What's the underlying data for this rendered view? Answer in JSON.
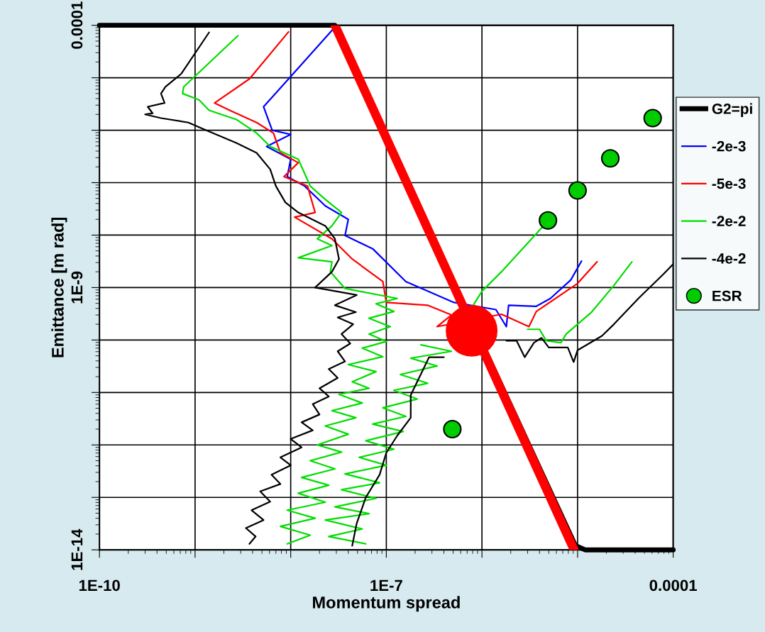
{
  "chart_data": {
    "type": "line",
    "xlabel": "Momentum spread",
    "ylabel": "Emittance [m rad]",
    "log": "xy",
    "grid": true,
    "legend": "right",
    "xlim": [
      1e-10,
      0.0001
    ],
    "ylim": [
      1e-14,
      0.0001
    ],
    "xticks": [
      {
        "value": 1e-10,
        "label": "1E-10"
      },
      {
        "value": 1e-09,
        "label": null
      },
      {
        "value": 1e-08,
        "label": null
      },
      {
        "value": 1e-07,
        "label": "1E-7"
      },
      {
        "value": 1e-06,
        "label": null
      },
      {
        "value": 1e-05,
        "label": null
      },
      {
        "value": 0.0001,
        "label": "0.0001"
      }
    ],
    "yticks": [
      {
        "value": 1e-14,
        "label": "1E-14"
      },
      {
        "value": 1e-13,
        "label": null
      },
      {
        "value": 1e-12,
        "label": null
      },
      {
        "value": 1e-11,
        "label": null
      },
      {
        "value": 1e-10,
        "label": null
      },
      {
        "value": 1e-09,
        "label": "1E-9"
      },
      {
        "value": 1e-08,
        "label": null
      },
      {
        "value": 1e-07,
        "label": null
      },
      {
        "value": 1e-06,
        "label": null
      },
      {
        "value": 1e-05,
        "label": null
      },
      {
        "value": 0.0001,
        "label": "0.0001"
      }
    ],
    "series": [
      {
        "name": "G2=pi",
        "color": "#000000",
        "x": [
          1e-10,
          2.9e-08,
          9.5e-06,
          1.2e-05,
          0.0001
        ],
        "values": [
          0.0001,
          0.0001,
          1.2e-14,
          1e-14,
          1e-14
        ]
      },
      {
        "name": "-2e-3",
        "color": "#0000ff",
        "x": [
          2.8e-08,
          9.5e-09,
          5.2e-09,
          6.4e-09,
          1e-08,
          5.6e-09,
          1e-08,
          9.2e-09,
          1.4e-08,
          2.3e-08,
          4e-08,
          3.7e-08,
          7.2e-08,
          1.6e-07,
          5.1e-07,
          1.4e-06,
          1.8e-06,
          1.9e-06,
          3.7e-06,
          5.2e-06,
          8.5e-06,
          1.1e-05
        ],
        "values": [
          8.6e-05,
          9.5e-06,
          2.8e-06,
          1e-06,
          8.3e-07,
          4.9e-07,
          2.8e-07,
          1.3e-07,
          8.6e-08,
          3.6e-08,
          2e-08,
          9.8e-09,
          5.5e-09,
          1.3e-09,
          5.2e-10,
          3.8e-10,
          1.8e-10,
          4.6e-10,
          4.4e-10,
          6.2e-10,
          1.4e-09,
          3.2e-09
        ]
      },
      {
        "name": "-5e-3",
        "color": "#ff0000",
        "x": [
          9.5e-09,
          3.7e-09,
          1.6e-09,
          2.3e-09,
          4.4e-09,
          6.6e-09,
          7.8e-09,
          1.2e-08,
          8.5e-09,
          1.5e-08,
          1.8e-08,
          1.1e-08,
          2.7e-08,
          4.4e-08,
          9.2e-08,
          1e-07,
          2.7e-07,
          4.8e-07,
          3.4e-07,
          1.6e-06,
          3.1e-06,
          3.7e-06,
          1e-05,
          1.6e-05
        ],
        "values": [
          7.5e-05,
          9.5e-06,
          3.3e-06,
          2.4e-06,
          1.4e-06,
          8.8e-07,
          3.7e-07,
          2.4e-07,
          1.3e-07,
          8.6e-08,
          2.7e-08,
          2.2e-08,
          8.5e-09,
          3.5e-09,
          1.3e-09,
          5.2e-10,
          4.6e-10,
          3e-10,
          1.8e-10,
          3.1e-10,
          1.8e-10,
          3.5e-10,
          1.2e-09,
          3.1e-09
        ]
      },
      {
        "name": "-2e-2",
        "color": "#00dd00",
        "x": [
          2.8e-09,
          7.6e-10,
          7.4e-10,
          1.1e-09,
          1.4e-09,
          2.7e-09,
          4.4e-09,
          6.1e-09,
          1.2e-08,
          1.6e-08,
          2.3e-08,
          3.4e-08,
          2.7e-08,
          1.9e-08,
          2.7e-08,
          1.2e-08,
          2.7e-08,
          2.6e-08,
          3.7e-08,
          1.3e-07,
          7.8e-08,
          1.2e-07,
          6.6e-08,
          1.1e-07,
          6.6e-08,
          1e-07,
          5.6e-08,
          9.2e-08,
          4e-08,
          7.8e-08,
          4.4e-08,
          6.6e-08,
          3.2e-08,
          5.6e-08,
          2.7e-08,
          4.8e-08,
          2.3e-08,
          4e-08,
          1.9e-08,
          3.4e-08,
          1.6e-08,
          2.9e-08,
          1.3e-08,
          2.5e-08,
          1.2e-08,
          2.3e-08,
          9.2e-09,
          1.8e-08,
          7.8e-09,
          1.6e-08,
          9.2e-09,
          null,
          6.1e-08,
          2.5e-08,
          5.6e-08,
          2.3e-08,
          6.6e-08,
          2.9e-08,
          7.8e-08,
          3.4e-08,
          8.5e-08,
          3.7e-08,
          1e-07,
          5.2e-08,
          1.2e-07,
          6.1e-08,
          1.5e-07,
          7.2e-08,
          1.6e-07,
          9.2e-08,
          2.1e-07,
          1.2e-07,
          2.7e-07,
          1.4e-07,
          3.4e-07,
          1.8e-07,
          4.8e-07,
          2.3e-07,
          null,
          8.1e-07,
          1e-06,
          1.6e-06,
          4.4e-06,
          null,
          null,
          null,
          3e-06,
          4e-06,
          4.7e-06,
          6.7e-06,
          7.6e-06,
          1.4e-05,
          2.4e-05,
          3.7e-05
        ],
        "values": [
          6.3e-05,
          6.7e-06,
          5e-06,
          3.8e-06,
          2.4e-06,
          1.6e-06,
          8.8e-07,
          4.9e-07,
          2.8e-07,
          8.6e-08,
          4.8e-08,
          2.7e-08,
          1.5e-08,
          8.5e-09,
          6.3e-09,
          3.7e-09,
          3.1e-09,
          2e-09,
          9.6e-10,
          6.2e-10,
          4.9e-10,
          3.5e-10,
          2.6e-10,
          1.8e-10,
          1.3e-10,
          9.4e-11,
          7e-11,
          4.8e-11,
          3.4e-11,
          2.5e-11,
          1.6e-11,
          1.2e-11,
          9.2e-12,
          6.3e-12,
          4.5e-12,
          3.3e-12,
          2.3e-12,
          1.6e-12,
          1e-12,
          7.3e-13,
          5e-13,
          3.5e-13,
          2.4e-13,
          1.7e-13,
          1.2e-13,
          8.1e-14,
          5.7e-14,
          4e-14,
          2.8e-14,
          1.9e-14,
          1.3e-14,
          null,
          1.3e-14,
          1.8e-14,
          2.5e-14,
          3.7e-14,
          4.9e-14,
          6.6e-14,
          9.6e-14,
          1.4e-13,
          1.9e-13,
          2.8e-13,
          4.1e-13,
          5.8e-13,
          8.3e-13,
          1.2e-12,
          1.8e-12,
          2.5e-12,
          3.5e-12,
          5.1e-12,
          7.5e-12,
          1.1e-11,
          1.5e-11,
          2.2e-11,
          3.2e-11,
          4.5e-11,
          6.1e-11,
          8.1e-11,
          null,
          4.6e-10,
          8.5e-10,
          2e-09,
          1.5e-08,
          null,
          null,
          null,
          1.6e-10,
          1.6e-10,
          9.7e-11,
          8.9e-11,
          1.3e-10,
          3.4e-10,
          1.1e-09,
          3.1e-09
        ]
      },
      {
        "name": "-4e-2",
        "color": "#000000",
        "x": [
          1.4e-09,
          7.2e-10,
          4.9e-10,
          4.4e-10,
          4.8e-10,
          3.2e-10,
          3.6e-10,
          3e-10,
          4.4e-10,
          8.5e-10,
          1.3e-09,
          2.7e-09,
          4.4e-09,
          6.1e-09,
          7e-09,
          8.8e-09,
          1.2e-08,
          2.3e-08,
          2.9e-08,
          3.2e-08,
          2.7e-08,
          1.8e-08,
          4.9e-08,
          2.9e-08,
          4.8e-08,
          3.1e-08,
          4.5e-08,
          3.4e-08,
          4.2e-08,
          3.1e-08,
          3.7e-08,
          2.5e-08,
          3.1e-08,
          2e-08,
          2.5e-08,
          1.7e-08,
          2e-08,
          1.3e-08,
          1.7e-08,
          1e-08,
          1.3e-08,
          7.8e-09,
          1e-08,
          6.3e-09,
          7.8e-09,
          4.8e-09,
          6.1e-09,
          3.9e-09,
          5.2e-09,
          3.4e-09,
          4.3e-09,
          3.7e-09,
          null,
          4.4e-08,
          4.9e-08,
          6.1e-08,
          8.5e-08,
          1e-07,
          1.3e-07,
          1.8e-07,
          1.8e-07,
          2.2e-07,
          2.8e-07,
          4e-07,
          null,
          null,
          null,
          null,
          1.8e-06,
          2.3e-06,
          2.8e-06,
          3.5e-06,
          4.2e-06,
          5e-06,
          7.9e-06,
          9.1e-06,
          1e-05,
          1.8e-05,
          2.4e-05,
          4.4e-05,
          7.9e-05,
          0.0001
        ],
        "values": [
          7.3e-05,
          1.2e-05,
          6.7e-06,
          5e-06,
          3.3e-06,
          2.8e-06,
          2.1e-06,
          2e-06,
          1.7e-06,
          1.4e-06,
          1e-06,
          5.7e-07,
          3.7e-07,
          1.8e-07,
          8.6e-08,
          4.2e-08,
          2.7e-08,
          1.5e-08,
          8.5e-09,
          3.5e-09,
          2e-09,
          1e-09,
          7.2e-10,
          4.6e-10,
          3.4e-10,
          2.7e-10,
          2e-10,
          1.3e-10,
          8.6e-11,
          6.1e-11,
          3.9e-11,
          2.8e-11,
          1.9e-11,
          1.2e-11,
          8.4e-12,
          6e-12,
          3.8e-12,
          2.7e-12,
          1.9e-12,
          1.3e-12,
          9e-13,
          5.8e-13,
          4.1e-13,
          2.7e-13,
          1.8e-13,
          1.3e-13,
          8.3e-14,
          5.7e-14,
          3.7e-14,
          2.6e-14,
          1.8e-14,
          1.3e-14,
          null,
          1.2e-14,
          3.2e-14,
          1e-13,
          2.7e-13,
          7.1e-13,
          1.5e-12,
          3.3e-12,
          8.9e-12,
          1.9e-11,
          4.7e-11,
          4.7e-11,
          null,
          null,
          null,
          null,
          9.7e-11,
          9.7e-11,
          4.7e-11,
          8.9e-11,
          1.1e-10,
          7.2e-11,
          7.2e-11,
          3.8e-11,
          6.4e-11,
          1.2e-10,
          2e-10,
          6.4e-10,
          1.8e-09,
          2.8e-09
        ]
      },
      {
        "name": "ESR",
        "color": "#00cc00",
        "type": "scatter",
        "marker": "circle",
        "x": [
          6.1e-05,
          2.2e-05,
          1e-05,
          4.9e-06,
          4.9e-07
        ],
        "values": [
          1.7e-06,
          2.9e-07,
          7.1e-08,
          1.9e-08,
          2e-12
        ]
      },
      {
        "color": "#ff0000",
        "x": [
          2.9e-08,
          9.2e-06
        ],
        "values": [
          0.0001,
          1e-14
        ]
      },
      {
        "color": "#ff0000",
        "type": "scatter",
        "marker": "circle",
        "x": [
          7.8e-07
        ],
        "values": [
          1.5e-10
        ]
      }
    ]
  }
}
